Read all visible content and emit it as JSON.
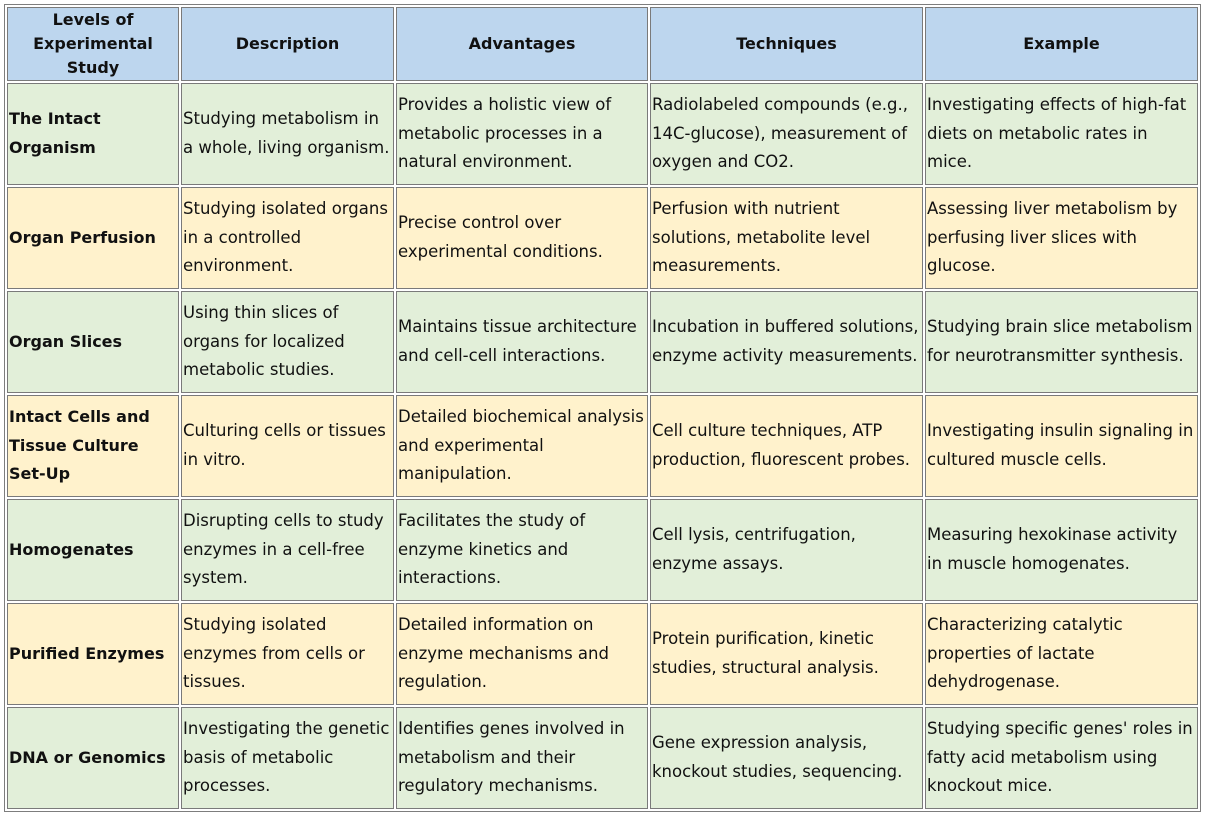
{
  "headers": [
    "Levels of Experimental Study",
    "Description",
    "Advantages",
    "Techniques",
    "Example"
  ],
  "rows": [
    {
      "level": "The Intact Organism",
      "description": "Studying metabolism in a whole, living organism.",
      "advantages": "Provides a holistic view of metabolic processes in a natural environment.",
      "techniques": "Radiolabeled compounds (e.g., 14C-glucose), measurement of oxygen and CO2.",
      "example": "Investigating effects of high-fat diets on metabolic rates in mice."
    },
    {
      "level": "Organ Perfusion",
      "description": "Studying isolated organs in a controlled environment.",
      "advantages": "Precise control over experimental conditions.",
      "techniques": "Perfusion with nutrient solutions, metabolite level measurements.",
      "example": "Assessing liver metabolism by perfusing liver slices with glucose."
    },
    {
      "level": "Organ Slices",
      "description": "Using thin slices of organs for localized metabolic studies.",
      "advantages": "Maintains tissue architecture and cell-cell interactions.",
      "techniques": "Incubation in buffered solutions, enzyme activity measurements.",
      "example": "Studying brain slice metabolism for neurotransmitter synthesis."
    },
    {
      "level": "Intact Cells and Tissue Culture Set-Up",
      "description": "Culturing cells or tissues in vitro.",
      "advantages": "Detailed biochemical analysis and experimental manipulation.",
      "techniques": "Cell culture techniques, ATP production, fluorescent probes.",
      "example": "Investigating insulin signaling in cultured muscle cells."
    },
    {
      "level": "Homogenates",
      "description": "Disrupting cells to study enzymes in a cell-free system.",
      "advantages": "Facilitates the study of enzyme kinetics and interactions.",
      "techniques": "Cell lysis, centrifugation, enzyme assays.",
      "example": "Measuring hexokinase activity in muscle homogenates."
    },
    {
      "level": "Purified Enzymes",
      "description": "Studying isolated enzymes from cells or tissues.",
      "advantages": "Detailed information on enzyme mechanisms and regulation.",
      "techniques": "Protein purification, kinetic studies, structural analysis.",
      "example": "Characterizing catalytic properties of lactate dehydrogenase."
    },
    {
      "level": "DNA or Genomics",
      "description": "Investigating the genetic basis of metabolic processes.",
      "advantages": "Identifies genes involved in metabolism and their regulatory mechanisms.",
      "techniques": "Gene expression analysis, knockout studies, sequencing.",
      "example": "Studying specific genes' roles in fatty acid metabolism using knockout mice."
    }
  ],
  "colors": {
    "header_bg": "#bdd6ee",
    "row_green": "#e2efd9",
    "row_yellow": "#fff2cc",
    "border": "#7a7a7a"
  }
}
